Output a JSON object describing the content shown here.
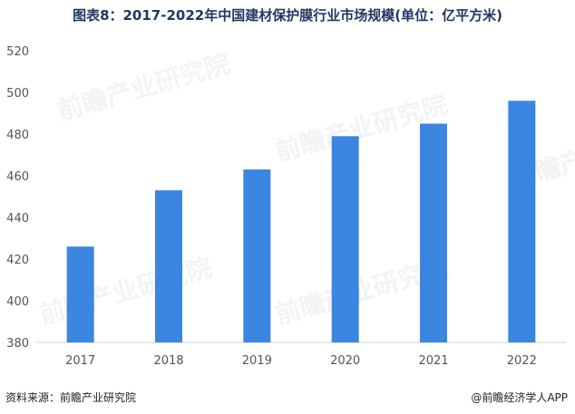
{
  "title": "图表8：2017-2022年中国建材保护膜行业市场规模(单位：亿平方米)",
  "chart_data": {
    "type": "bar",
    "categories": [
      "2017",
      "2018",
      "2019",
      "2020",
      "2021",
      "2022"
    ],
    "values": [
      426,
      453,
      463,
      479,
      485,
      496
    ],
    "yticks": [
      380,
      400,
      420,
      440,
      460,
      480,
      500,
      520
    ],
    "ylim": [
      380,
      520
    ],
    "grid": false,
    "bar_color": "#3a86e0"
  },
  "footer": {
    "source": "资料来源：前瞻产业研究院",
    "credit": "@前瞻经济学人APP"
  },
  "watermark": "前瞻产业研究院"
}
